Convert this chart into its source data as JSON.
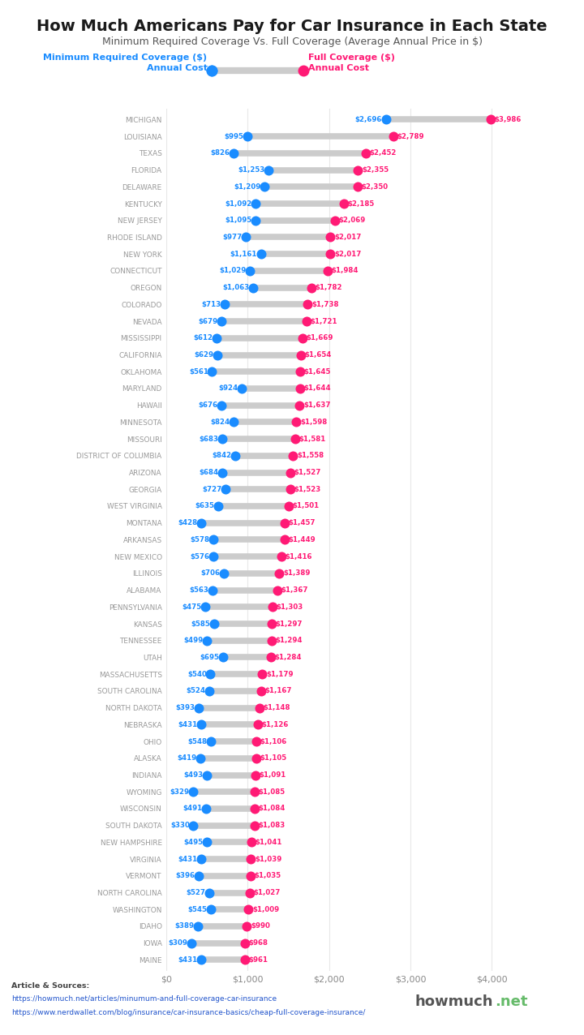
{
  "title": "How Much Americans Pay for Car Insurance in Each State",
  "subtitle": "Minimum Required Coverage Vs. Full Coverage (Average Annual Price in $)",
  "states": [
    "MICHIGAN",
    "LOUISIANA",
    "TEXAS",
    "FLORIDA",
    "DELAWARE",
    "KENTUCKY",
    "NEW JERSEY",
    "RHODE ISLAND",
    "NEW YORK",
    "CONNECTICUT",
    "OREGON",
    "COLORADO",
    "NEVADA",
    "MISSISSIPPI",
    "CALIFORNIA",
    "OKLAHOMA",
    "MARYLAND",
    "HAWAII",
    "MINNESOTA",
    "MISSOURI",
    "DISTRICT OF COLUMBIA",
    "ARIZONA",
    "GEORGIA",
    "WEST VIRGINIA",
    "MONTANA",
    "ARKANSAS",
    "NEW MEXICO",
    "ILLINOIS",
    "ALABAMA",
    "PENNSYLVANIA",
    "KANSAS",
    "TENNESSEE",
    "UTAH",
    "MASSACHUSETTS",
    "SOUTH CAROLINA",
    "NORTH DAKOTA",
    "NEBRASKA",
    "OHIO",
    "ALASKA",
    "INDIANA",
    "WYOMING",
    "WISCONSIN",
    "SOUTH DAKOTA",
    "NEW HAMPSHIRE",
    "VIRGINIA",
    "VERMONT",
    "NORTH CAROLINA",
    "WASHINGTON",
    "IDAHO",
    "IOWA",
    "MAINE"
  ],
  "min_coverage": [
    2696,
    995,
    826,
    1253,
    1209,
    1092,
    1095,
    977,
    1161,
    1029,
    1063,
    713,
    679,
    612,
    629,
    561,
    924,
    676,
    824,
    683,
    842,
    684,
    727,
    635,
    428,
    578,
    576,
    706,
    563,
    475,
    585,
    499,
    695,
    540,
    524,
    393,
    431,
    548,
    419,
    493,
    329,
    491,
    330,
    495,
    431,
    396,
    527,
    545,
    389,
    309,
    431
  ],
  "full_coverage": [
    3986,
    2789,
    2452,
    2355,
    2350,
    2185,
    2069,
    2017,
    2017,
    1984,
    1782,
    1738,
    1721,
    1669,
    1654,
    1645,
    1644,
    1637,
    1598,
    1581,
    1558,
    1527,
    1523,
    1501,
    1457,
    1449,
    1416,
    1389,
    1367,
    1303,
    1297,
    1294,
    1284,
    1179,
    1167,
    1148,
    1126,
    1106,
    1105,
    1091,
    1085,
    1084,
    1083,
    1041,
    1039,
    1035,
    1027,
    1009,
    990,
    968,
    961
  ],
  "min_color": "#1a8cff",
  "full_color": "#ff1a75",
  "bar_color": "#cccccc",
  "bg_color": "#ffffff",
  "title_color": "#1a1a1a",
  "subtitle_color": "#555555",
  "state_label_color": "#999999",
  "grid_color": "#e8e8e8",
  "xlabel_ticks": [
    0,
    1000,
    2000,
    3000,
    4000
  ],
  "xlabel_labels": [
    "$0",
    "$1,000",
    "$2,000",
    "$3,000",
    "$4,000"
  ],
  "article_text_line1": "Article & Sources:",
  "article_text_line2": "https://howmuch.net/articles/minumum-and-full-coverage-car-insurance",
  "article_text_line3": "https://www.nerdwallet.com/blog/insurance/car-insurance-basics/cheap-full-coverage-insurance/",
  "legend_min_label": "Minimum Required Coverage ($)\nAnnual Cost",
  "legend_full_label": "Full Coverage ($)\nAnnual Cost",
  "source_color": "#444444",
  "howmuch_color": "#555555",
  "net_color": "#66bb6a"
}
